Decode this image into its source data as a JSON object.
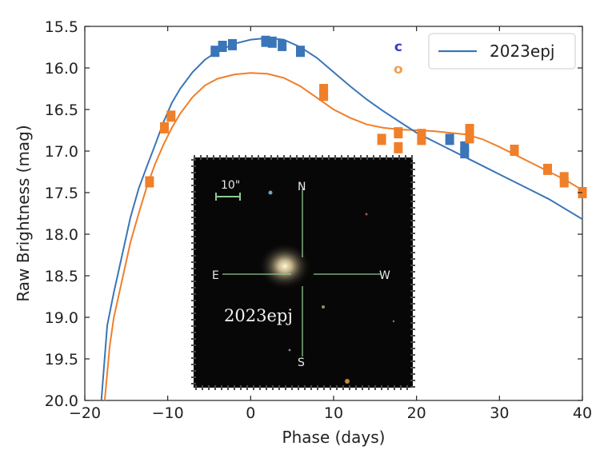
{
  "chart_data": {
    "type": "line",
    "title": "",
    "xlabel": "Phase (days)",
    "ylabel": "Raw Brightness (mag)",
    "xlim": [
      -20,
      40
    ],
    "ylim": [
      20.0,
      15.5
    ],
    "y_inverted": true,
    "x_ticks": [
      -20,
      -10,
      0,
      10,
      20,
      30,
      40
    ],
    "x_tick_labels": [
      "−20",
      "−10",
      "0",
      "10",
      "20",
      "30",
      "40"
    ],
    "y_ticks": [
      15.5,
      16.0,
      16.5,
      17.0,
      17.5,
      18.0,
      18.5,
      19.0,
      19.5,
      20.0
    ],
    "y_tick_labels": [
      "15.5",
      "16.0",
      "16.5",
      "17.0",
      "17.5",
      "18.0",
      "18.5",
      "19.0",
      "19.5",
      "20.0"
    ],
    "grid": false,
    "legend": {
      "placement": "top-right",
      "entries": [
        {
          "label": "2023epj",
          "color": "#3a75b8"
        }
      ]
    },
    "band_labels": [
      {
        "text": "c",
        "color": "#3a3ad0",
        "x": 17.8,
        "y": 15.74
      },
      {
        "text": "o",
        "color": "#f0a050",
        "x": 17.8,
        "y": 16.01
      }
    ],
    "series": [
      {
        "band": "c",
        "kind": "model",
        "color": "#3a75b8",
        "x": [
          -18.0,
          -17.3,
          -16.5,
          -15.5,
          -14.5,
          -13.5,
          -12.5,
          -11.5,
          -10.5,
          -9.5,
          -8.5,
          -7.0,
          -5.5,
          -4.0,
          -2.0,
          0.0,
          2.0,
          4.0,
          6.0,
          8.0,
          10.0,
          12.0,
          14.0,
          16.0,
          18.0,
          20.0,
          22.0,
          24.0,
          26.0,
          28.0,
          30.0,
          32.0,
          34.0,
          36.0,
          38.0,
          40.0
        ],
        "y": [
          20.0,
          19.1,
          18.7,
          18.25,
          17.8,
          17.45,
          17.18,
          16.92,
          16.65,
          16.42,
          16.25,
          16.05,
          15.9,
          15.8,
          15.71,
          15.66,
          15.64,
          15.66,
          15.75,
          15.88,
          16.05,
          16.22,
          16.38,
          16.52,
          16.65,
          16.78,
          16.88,
          16.98,
          17.08,
          17.18,
          17.28,
          17.38,
          17.48,
          17.58,
          17.7,
          17.82
        ]
      },
      {
        "band": "o",
        "kind": "model",
        "color": "#f07f2a",
        "x": [
          -17.6,
          -17.0,
          -16.5,
          -15.5,
          -14.5,
          -13.5,
          -12.5,
          -11.5,
          -10.5,
          -9.5,
          -8.5,
          -7.0,
          -5.5,
          -4.0,
          -2.0,
          0.0,
          2.0,
          4.0,
          6.0,
          8.0,
          10.0,
          12.0,
          14.0,
          16.0,
          18.0,
          20.0,
          22.0,
          24.0,
          26.0,
          28.0,
          30.0,
          32.0,
          34.0,
          36.0,
          38.0,
          40.0
        ],
        "y": [
          20.0,
          19.35,
          19.0,
          18.55,
          18.1,
          17.75,
          17.42,
          17.15,
          16.92,
          16.72,
          16.55,
          16.35,
          16.21,
          16.13,
          16.08,
          16.06,
          16.07,
          16.12,
          16.22,
          16.36,
          16.5,
          16.6,
          16.68,
          16.72,
          16.74,
          16.75,
          16.76,
          16.78,
          16.8,
          16.86,
          16.95,
          17.05,
          17.15,
          17.25,
          17.35,
          17.47
        ]
      },
      {
        "band": "c",
        "kind": "observed",
        "color": "#3a75b8",
        "x": [
          -4.3,
          -3.4,
          -2.2,
          1.8,
          2.6,
          3.8,
          6.0,
          24.0,
          25.8,
          25.8
        ],
        "y": [
          15.8,
          15.74,
          15.72,
          15.68,
          15.69,
          15.73,
          15.8,
          16.86,
          16.95,
          17.02
        ]
      },
      {
        "band": "o",
        "kind": "observed",
        "color": "#f07f2a",
        "x": [
          -12.2,
          -10.4,
          -9.6,
          8.8,
          8.8,
          15.8,
          17.8,
          17.8,
          20.6,
          20.6,
          26.4,
          26.4,
          31.8,
          35.8,
          37.8,
          37.8,
          40.0
        ],
        "y": [
          17.37,
          16.72,
          16.58,
          16.26,
          16.33,
          16.86,
          16.78,
          16.96,
          16.8,
          16.86,
          16.74,
          16.84,
          16.99,
          17.22,
          17.32,
          17.37,
          17.5
        ]
      }
    ]
  },
  "inset": {
    "scale_label": "10\"",
    "north": "N",
    "south": "S",
    "east": "E",
    "west": "W",
    "object_label": "2023epj"
  }
}
